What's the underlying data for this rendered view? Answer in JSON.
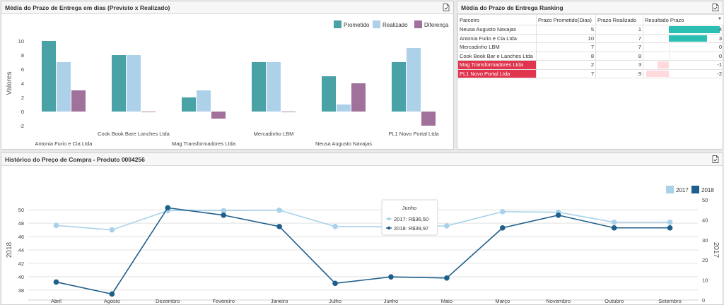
{
  "panel1": {
    "title": "Média do Prazo de Entrega em dias (Previsto x Realizado)",
    "legend": [
      {
        "label": "Prometido",
        "color": "#48a2a6"
      },
      {
        "label": "Realizado",
        "color": "#aed1ea"
      },
      {
        "label": "Diferença",
        "color": "#a0719a"
      }
    ]
  },
  "panel2": {
    "title": "Média do Prazo de Entrega Ranking",
    "columns": [
      "Parceiro",
      "Prazo Prometido(Dias)",
      "Prazo Realizado",
      "Resultado Prazo"
    ],
    "rows": [
      {
        "parceiro": "Neusa Augusto Navajas",
        "prometido": "5",
        "realizado": "1",
        "resultado": "4",
        "value": 4,
        "highlight": false
      },
      {
        "parceiro": "Antonia Furio e Cia Ltda",
        "prometido": "10",
        "realizado": "7",
        "resultado": "3",
        "value": 3,
        "highlight": false
      },
      {
        "parceiro": "Mercadinho LBM",
        "prometido": "7",
        "realizado": "7",
        "resultado": "0",
        "value": 0,
        "highlight": false
      },
      {
        "parceiro": "Cook Book Bar e Lanches Ltda",
        "prometido": "8",
        "realizado": "8",
        "resultado": "0",
        "value": 0,
        "highlight": false
      },
      {
        "parceiro": "Mag Transformadores Ltda",
        "prometido": "2",
        "realizado": "3",
        "resultado": "-1",
        "value": -1,
        "highlight": true
      },
      {
        "parceiro": "PL1 Novo Portal Ltda",
        "prometido": "7",
        "realizado": "9",
        "resultado": "-2",
        "value": -2,
        "highlight": true
      }
    ],
    "positive_color": "#2bbfb3",
    "negative_color": "#ffd9dc"
  },
  "panel3": {
    "title": "Histórico do Preço de Compra - Produto 0004256",
    "tooltip": {
      "title": "Junho",
      "line1": "2017: R$36,50",
      "line2": "2018: R$39,97"
    }
  },
  "chart_data": [
    {
      "type": "bar",
      "categories": [
        "Antonia Furio e Cia Ltda",
        "Cook Book Bare Lanches Ltda",
        "Mag Transformadores Ltda",
        "Mercadinho LBM",
        "Neusa Augusto Navajas",
        "PL1 Novo Portal Ltda"
      ],
      "series": [
        {
          "name": "Prometido",
          "values": [
            10,
            8,
            2,
            7,
            5,
            7
          ],
          "color": "#48a2a6"
        },
        {
          "name": "Realizado",
          "values": [
            7,
            8,
            3,
            7,
            1,
            9
          ],
          "color": "#aed1ea"
        },
        {
          "name": "Diferença",
          "values": [
            3,
            0,
            -1,
            0,
            4,
            -2
          ],
          "color": "#a0719a"
        }
      ],
      "ylabel": "Valores",
      "ylim": [
        -3,
        11
      ],
      "yticks": [
        -2,
        0,
        2,
        4,
        6,
        8,
        10
      ],
      "legend": "top-right",
      "grid": false
    },
    {
      "type": "line",
      "categories": [
        "Abril",
        "Agosto",
        "Dezembro",
        "Fevereiro",
        "Janeiro",
        "Julho",
        "Junho",
        "Maio",
        "Março",
        "Novembro",
        "Outubro",
        "Setembro"
      ],
      "series": [
        {
          "name": "2017",
          "axis": "right",
          "values": [
            37.2,
            35,
            44.6,
            44.6,
            44.8,
            36.7,
            36.5,
            37,
            44.1,
            43.8,
            38.8,
            38.8
          ],
          "color": "#a9d1ea"
        },
        {
          "name": "2018",
          "axis": "left",
          "values": [
            39.2,
            37.4,
            50.3,
            49.2,
            47.5,
            39,
            39.97,
            39.8,
            47.3,
            49.2,
            47.3,
            47.3
          ],
          "color": "#1f5f8b"
        }
      ],
      "ylabel": "2018",
      "y2label": "2017",
      "ylim": [
        36.5,
        51.5
      ],
      "yticks": [
        38,
        40,
        42,
        44,
        46,
        48,
        50
      ],
      "y2lim": [
        0,
        50
      ],
      "y2ticks": [
        0,
        10,
        20,
        30,
        40,
        50
      ],
      "legend": "top-right",
      "grid": true
    }
  ]
}
